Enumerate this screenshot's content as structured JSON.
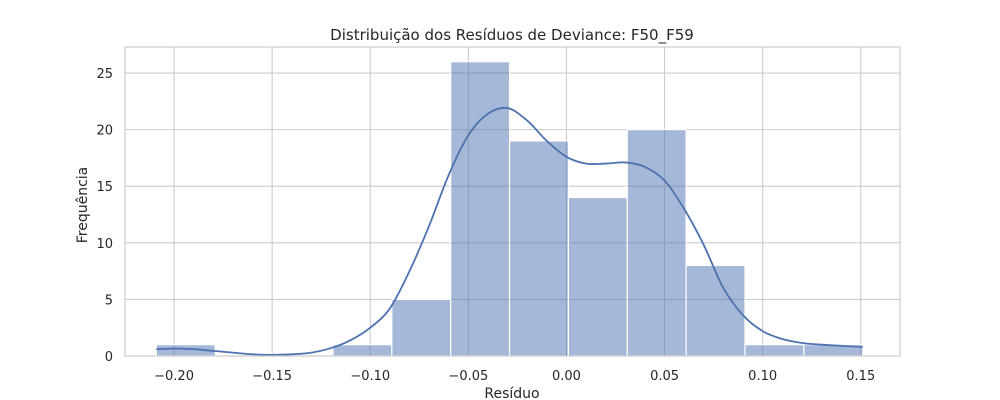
{
  "chart_data": {
    "type": "histogram",
    "title": "Distribuição dos Resíduos de Deviance: F50_F59",
    "xlabel": "Resíduo",
    "ylabel": "Frequência",
    "xlim": [
      -0.225,
      0.17
    ],
    "ylim": [
      0,
      27.3
    ],
    "xticks": [
      -0.2,
      -0.15,
      -0.1,
      -0.05,
      0.0,
      0.05,
      0.1,
      0.15
    ],
    "xtick_labels": [
      "−0.20",
      "−0.15",
      "−0.10",
      "−0.05",
      "0.00",
      "0.05",
      "0.10",
      "0.15"
    ],
    "yticks": [
      0,
      5,
      10,
      15,
      20,
      25
    ],
    "ytick_labels": [
      "0",
      "5",
      "10",
      "15",
      "20",
      "25"
    ],
    "bins": [
      {
        "x0": -0.209,
        "x1": -0.179,
        "count": 1
      },
      {
        "x0": -0.179,
        "x1": -0.149,
        "count": 0
      },
      {
        "x0": -0.149,
        "x1": -0.119,
        "count": 0
      },
      {
        "x0": -0.119,
        "x1": -0.089,
        "count": 1
      },
      {
        "x0": -0.089,
        "x1": -0.059,
        "count": 5
      },
      {
        "x0": -0.059,
        "x1": -0.029,
        "count": 26
      },
      {
        "x0": -0.029,
        "x1": 0.001,
        "count": 19
      },
      {
        "x0": 0.001,
        "x1": 0.031,
        "count": 14
      },
      {
        "x0": 0.031,
        "x1": 0.061,
        "count": 20
      },
      {
        "x0": 0.061,
        "x1": 0.091,
        "count": 8
      },
      {
        "x0": 0.091,
        "x1": 0.121,
        "count": 1
      },
      {
        "x0": 0.121,
        "x1": 0.151,
        "count": 1
      }
    ],
    "kde": {
      "x": [
        -0.209,
        -0.2,
        -0.19,
        -0.18,
        -0.17,
        -0.16,
        -0.15,
        -0.14,
        -0.13,
        -0.12,
        -0.11,
        -0.1,
        -0.09,
        -0.08,
        -0.07,
        -0.06,
        -0.05,
        -0.04,
        -0.03,
        -0.02,
        -0.01,
        0.0,
        0.01,
        0.02,
        0.03,
        0.04,
        0.05,
        0.06,
        0.07,
        0.08,
        0.09,
        0.1,
        0.11,
        0.12,
        0.13,
        0.14,
        0.151
      ],
      "y": [
        0.6,
        0.65,
        0.6,
        0.45,
        0.3,
        0.15,
        0.1,
        0.15,
        0.3,
        0.7,
        1.4,
        2.5,
        4.2,
        7.5,
        11.5,
        16.0,
        19.5,
        21.4,
        21.9,
        20.8,
        19.0,
        17.6,
        17.0,
        17.0,
        17.1,
        16.7,
        15.5,
        13.0,
        9.8,
        6.0,
        3.6,
        2.2,
        1.5,
        1.15,
        1.0,
        0.9,
        0.8
      ]
    },
    "grid": true,
    "colors": {
      "bar": "#4c72b0",
      "bar_opacity": 0.5,
      "kde": "#4c72b0"
    }
  }
}
